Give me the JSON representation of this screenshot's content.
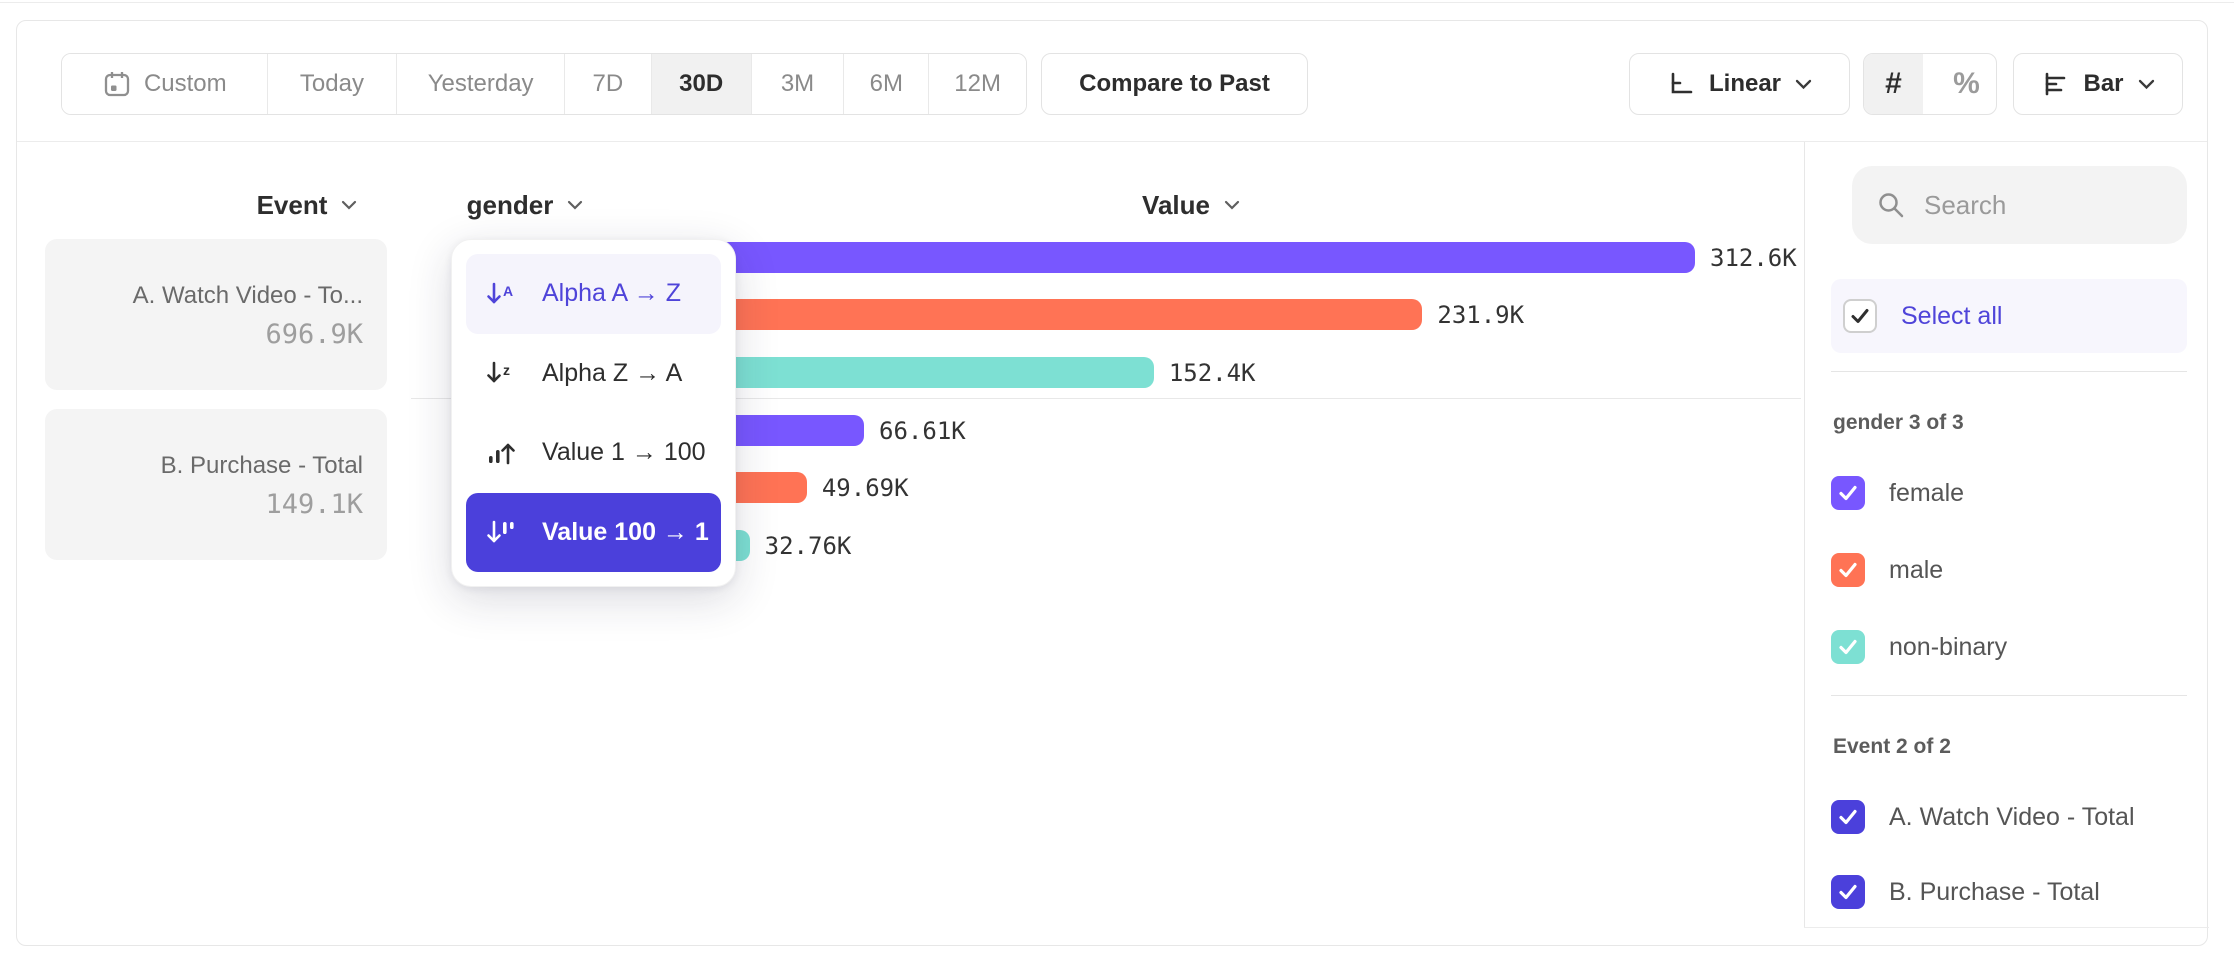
{
  "toolbar": {
    "date_ranges": [
      {
        "label": "Custom"
      },
      {
        "label": "Today"
      },
      {
        "label": "Yesterday"
      },
      {
        "label": "7D"
      },
      {
        "label": "30D"
      },
      {
        "label": "3M"
      },
      {
        "label": "6M"
      },
      {
        "label": "12M"
      }
    ],
    "selected_range": "30D",
    "compare_label": "Compare to Past",
    "scale_label": "Linear",
    "number_toggle": {
      "hash": "#",
      "percent": "%",
      "selected": "#"
    },
    "chart_type_label": "Bar"
  },
  "columns": {
    "event_label": "Event",
    "breakdown_label": "gender",
    "value_label": "Value"
  },
  "events": [
    {
      "display_name": "A. Watch Video - To...",
      "total": "696.9K"
    },
    {
      "display_name": "B. Purchase - Total",
      "total": "149.1K"
    }
  ],
  "sort_menu": {
    "items": [
      {
        "label": "Alpha A → Z",
        "icon": "sort-alpha-asc-icon",
        "state": "highlighted"
      },
      {
        "label": "Alpha Z → A",
        "icon": "sort-alpha-desc-icon",
        "state": "default"
      },
      {
        "label": "Value 1 → 100",
        "icon": "sort-value-asc-icon",
        "state": "default"
      },
      {
        "label": "Value 100 → 1",
        "icon": "sort-value-desc-icon",
        "state": "selected"
      }
    ]
  },
  "chart_data": {
    "type": "bar",
    "orientation": "horizontal",
    "group_by": "gender",
    "value_axis_label": "Value",
    "sort": "Value 100 → 1",
    "xmax": 312600,
    "palette": {
      "female": "#7857FF",
      "male": "#FF7355",
      "non-binary": "#7DE0D3"
    },
    "groups": [
      {
        "event": "A. Watch Video - Total",
        "total_label": "696.9K",
        "bars": [
          {
            "category": "female",
            "value": 312600,
            "label": "312.6K"
          },
          {
            "category": "male",
            "value": 231900,
            "label": "231.9K"
          },
          {
            "category": "non-binary",
            "value": 152400,
            "label": "152.4K"
          }
        ]
      },
      {
        "event": "B. Purchase - Total",
        "total_label": "149.1K",
        "bars": [
          {
            "category": "female",
            "value": 66610,
            "label": "66.61K"
          },
          {
            "category": "male",
            "value": 49690,
            "label": "49.69K"
          },
          {
            "category": "non-binary",
            "value": 32760,
            "label": "32.76K"
          }
        ]
      }
    ]
  },
  "sidebar": {
    "search_placeholder": "Search",
    "select_all_label": "Select all",
    "sections": [
      {
        "title": "gender 3 of 3",
        "items": [
          {
            "label": "female",
            "checked": true,
            "color": "#7857FF"
          },
          {
            "label": "male",
            "checked": true,
            "color": "#FF7355"
          },
          {
            "label": "non-binary",
            "checked": true,
            "color": "#7DE0D3"
          }
        ]
      },
      {
        "title": "Event 2 of 2",
        "items": [
          {
            "label": "A. Watch Video - Total",
            "checked": true,
            "color": "#4B40DB"
          },
          {
            "label": "B. Purchase - Total",
            "checked": true,
            "color": "#4B40DB"
          }
        ]
      }
    ]
  }
}
